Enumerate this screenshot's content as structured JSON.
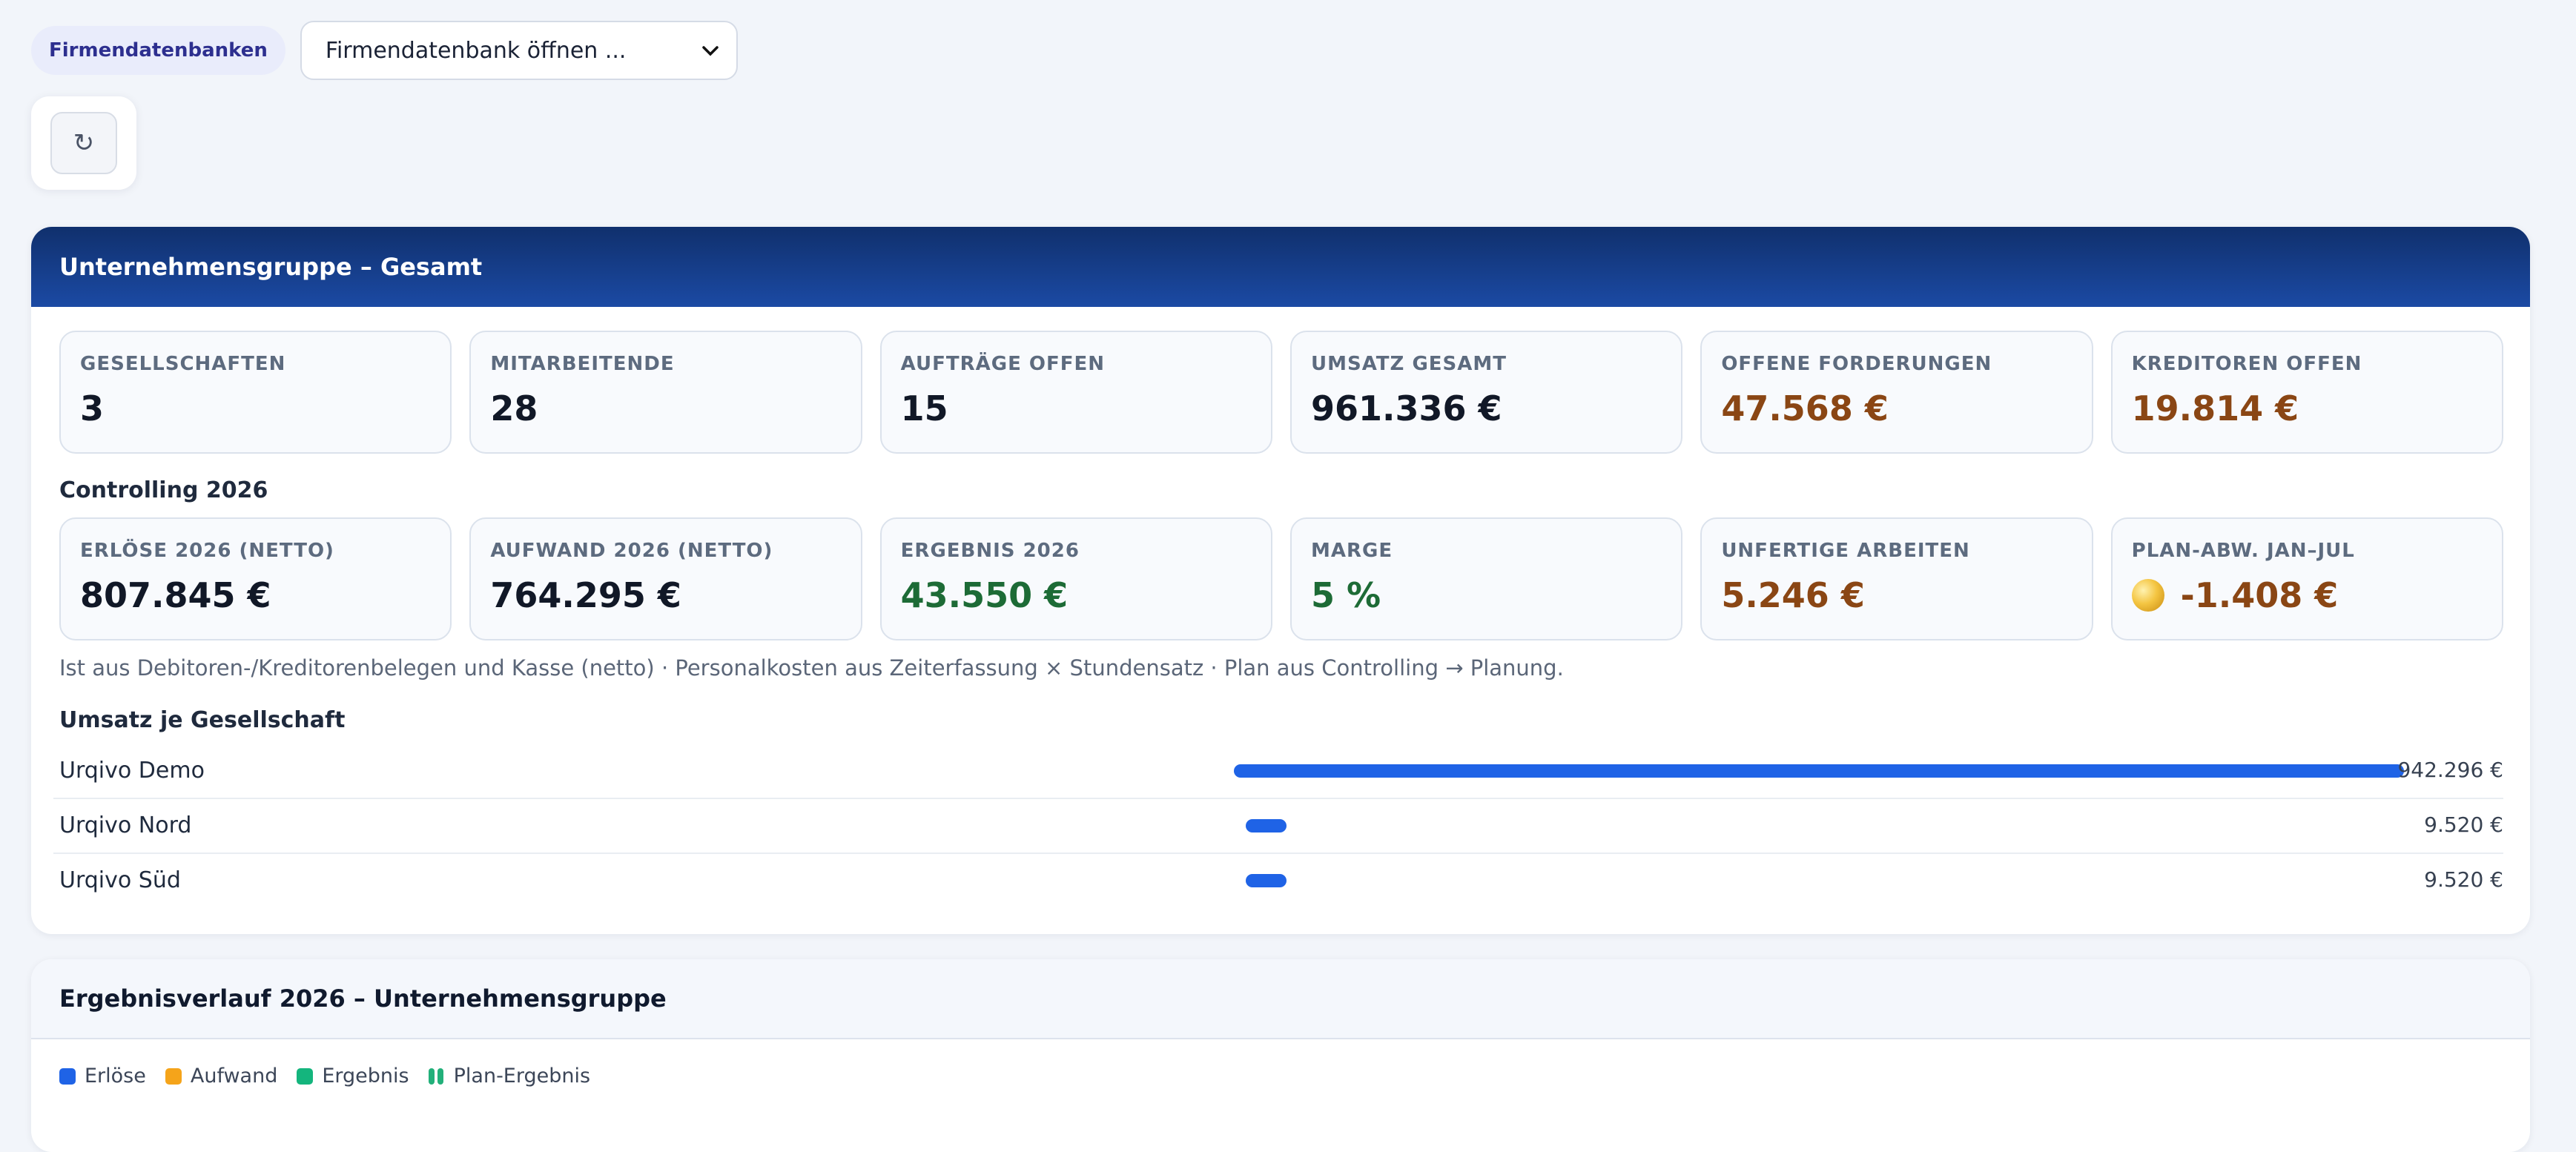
{
  "topbar": {
    "db_label": "Firmendatenbanken",
    "db_select_value": "Firmendatenbank öffnen ..."
  },
  "refresh": {
    "icon": "refresh-icon",
    "glyph": "↻"
  },
  "group": {
    "title": "Unternehmensgruppe – Gesamt",
    "kpis": [
      {
        "label": "Gesellschaften",
        "value": "3"
      },
      {
        "label": "Mitarbeitende",
        "value": "28"
      },
      {
        "label": "Aufträge offen",
        "value": "15"
      },
      {
        "label": "Umsatz gesamt",
        "value": "961.336 €"
      },
      {
        "label": "Offene Forderungen",
        "value": "47.568 €"
      },
      {
        "label": "Kreditoren offen",
        "value": "19.814 €"
      }
    ],
    "controlling_title": "Controlling 2026",
    "controlling": [
      {
        "label": "Erlöse 2026 (netto)",
        "value": "807.845 €"
      },
      {
        "label": "Aufwand 2026 (netto)",
        "value": "764.295 €"
      },
      {
        "label": "Ergebnis 2026",
        "value": "43.550 €"
      },
      {
        "label": "Marge",
        "value": "5 %"
      },
      {
        "label": "Unfertige Arbeiten",
        "value": "5.246 €"
      },
      {
        "label": "Plan-Abw. Jan–Jul",
        "value": "-1.408 €"
      }
    ],
    "note": "Ist aus Debitoren-/Kreditorenbelegen und Kasse (netto) · Personalkosten aus Zeiterfassung × Stundensatz · Plan aus Controlling → Planung.",
    "revenue_title": "Umsatz je Gesellschaft",
    "revenue": [
      {
        "name": "Urqivo Demo",
        "value": "942.296 €",
        "amount": 942296
      },
      {
        "name": "Urqivo Nord",
        "value": "9.520 €",
        "amount": 9520
      },
      {
        "name": "Urqivo Süd",
        "value": "9.520 €",
        "amount": 9520
      }
    ]
  },
  "trend": {
    "title": "Ergebnisverlauf 2026 – Unternehmensgruppe",
    "legend": [
      {
        "label": "Erlöse",
        "color": "#1f63e6"
      },
      {
        "label": "Aufwand",
        "color": "#f5a41a"
      },
      {
        "label": "Ergebnis",
        "color": "#14b57d"
      },
      {
        "label": "Plan-Ergebnis",
        "color": "#22b07a"
      }
    ]
  },
  "colors": {
    "header_dark": "#10306d",
    "accent_blue": "#1f63e6",
    "warn_orange": "#8a4614",
    "good_green": "#1d6b36"
  }
}
